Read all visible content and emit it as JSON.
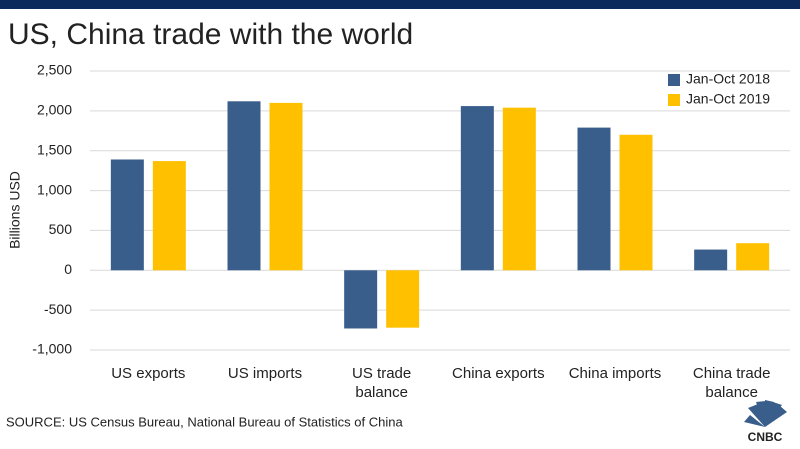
{
  "chart_data": {
    "type": "bar",
    "title": "US, China trade with the world",
    "y_label": "Billions USD",
    "source": "SOURCE: US Census Bureau, National Bureau of Statistics of China",
    "logo": "CNBC",
    "categories": [
      "US exports",
      "US imports",
      "US trade balance",
      "China exports",
      "China imports",
      "China trade balance"
    ],
    "series": [
      {
        "name": "Jan-Oct 2018",
        "color": "#3a5e8c",
        "values": [
          1390,
          2120,
          -730,
          2060,
          1790,
          260
        ]
      },
      {
        "name": "Jan-Oct 2019",
        "color": "#ffc000",
        "values": [
          1370,
          2100,
          -720,
          2040,
          1700,
          340
        ]
      }
    ],
    "ylim": [
      -1000,
      2500
    ],
    "yticks": [
      {
        "value": -1000,
        "label": "-1,000"
      },
      -500,
      0,
      500,
      {
        "value": 1000,
        "label": "1,000"
      },
      {
        "value": 1500,
        "label": "1,500"
      },
      {
        "value": 2000,
        "label": "2,000"
      },
      {
        "value": 2500,
        "label": "2,500"
      }
    ],
    "grid": true,
    "legend": "top-right"
  }
}
